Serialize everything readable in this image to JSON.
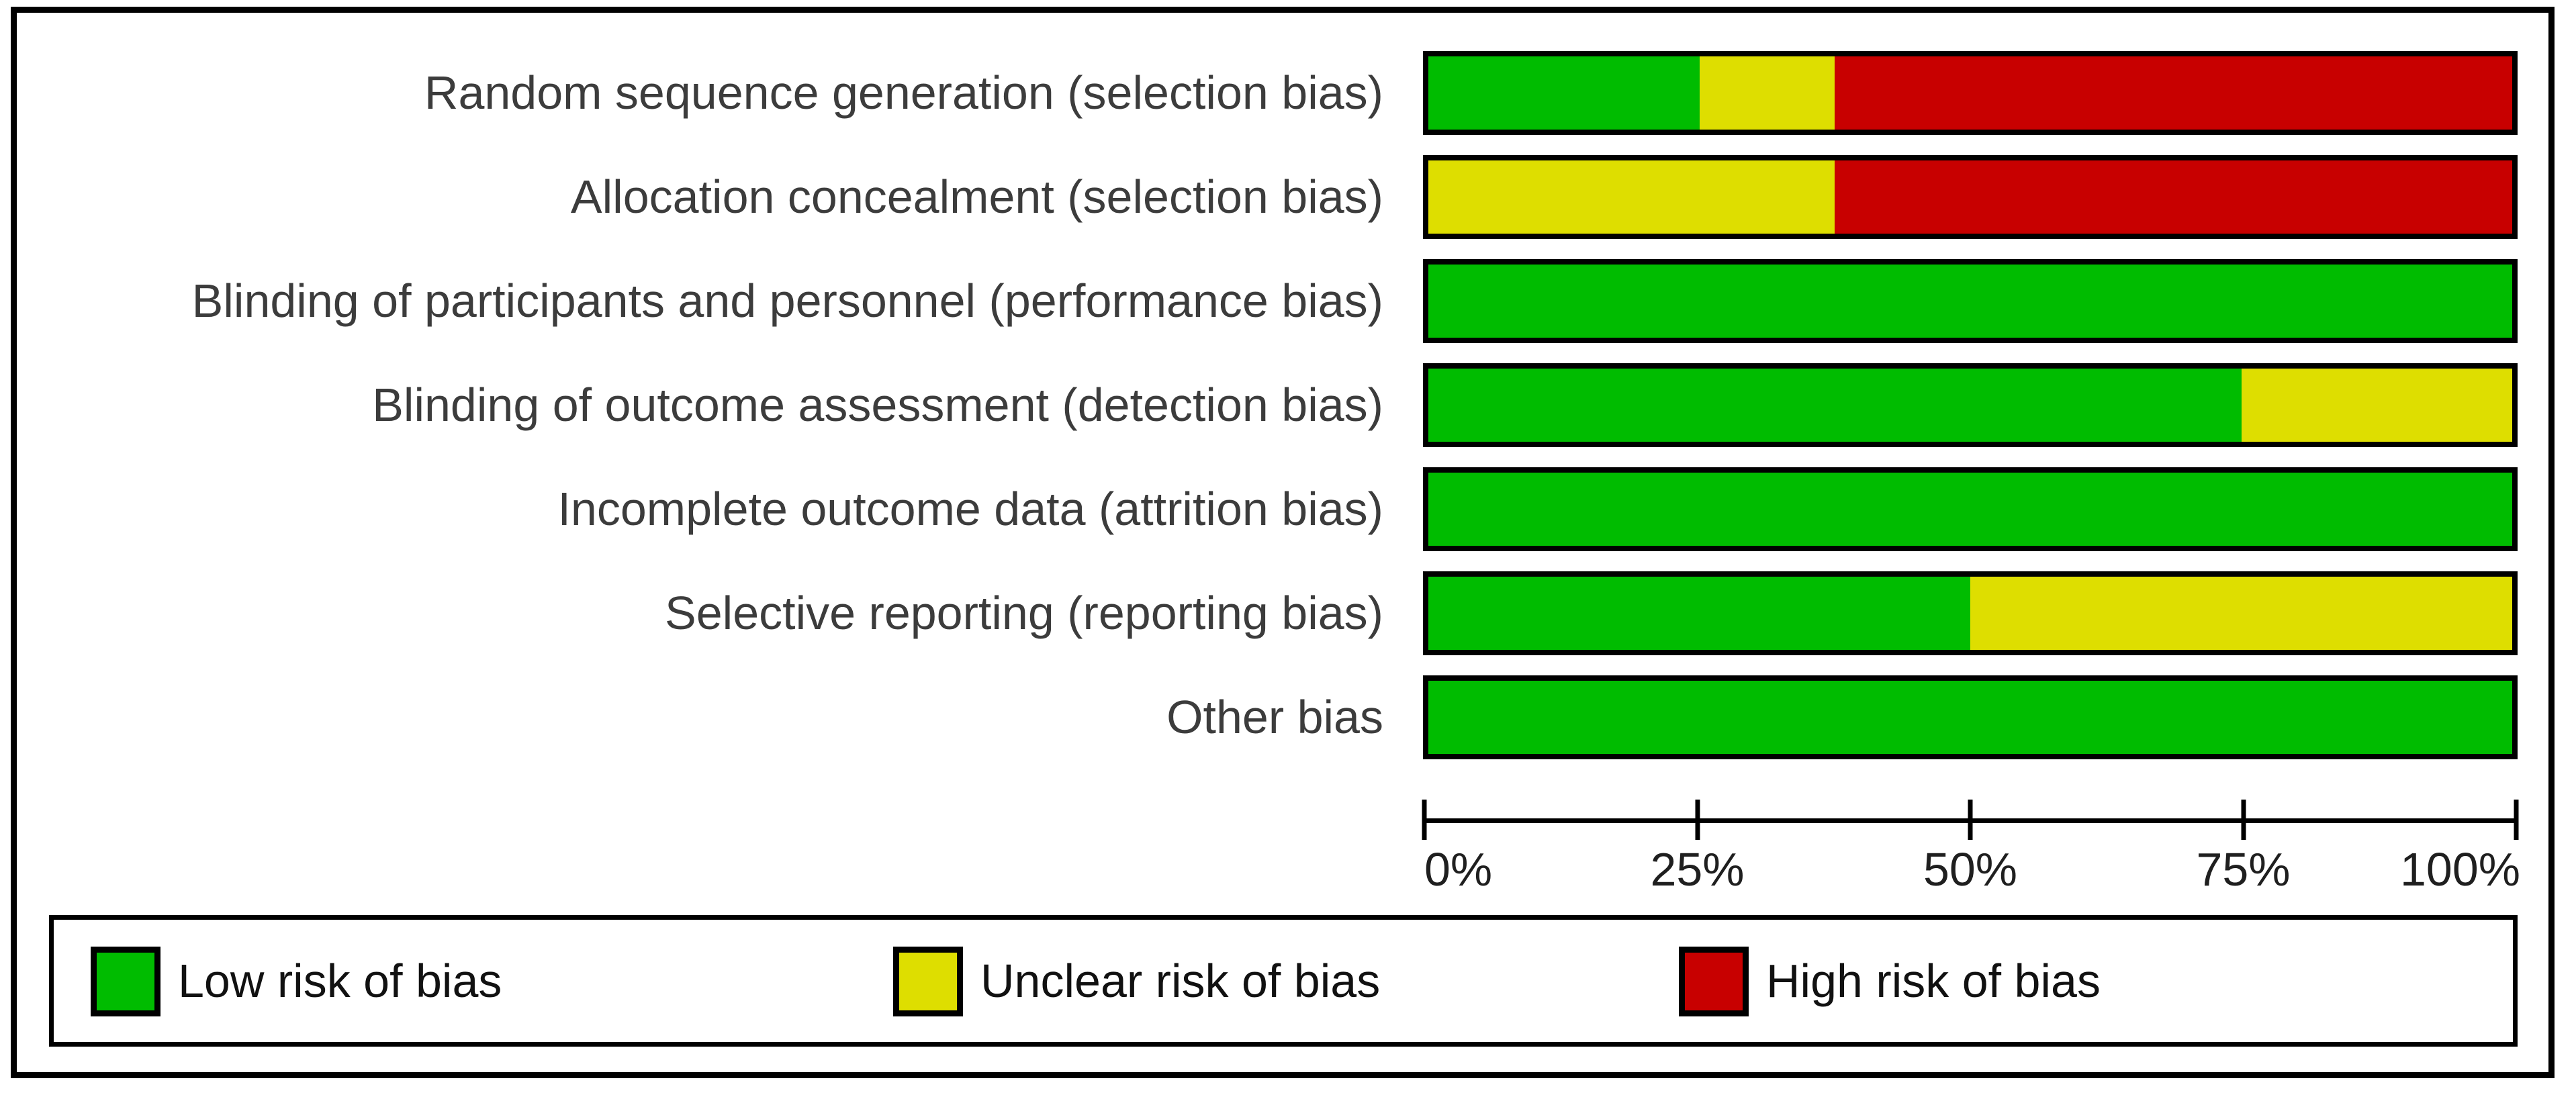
{
  "figure": {
    "background_color": "#ffffff",
    "border_color": "#000000",
    "text_color": "#3c3c3c"
  },
  "chart_data": {
    "type": "bar",
    "stacked": true,
    "orientation": "horizontal",
    "title": "",
    "xlabel": "",
    "ylabel": "",
    "grid": false,
    "xlim": [
      0,
      100
    ],
    "x_ticks": [
      "0%",
      "25%",
      "50%",
      "75%",
      "100%"
    ],
    "x_tick_values": [
      0,
      25,
      50,
      75,
      100
    ],
    "legend_position": "bottom-box",
    "categories": [
      "Random sequence generation (selection bias)",
      "Allocation concealment (selection bias)",
      "Blinding of participants and personnel (performance bias)",
      "Blinding of outcome assessment (detection bias)",
      "Incomplete outcome data (attrition bias)",
      "Selective reporting (reporting bias)",
      "Other bias"
    ],
    "series": [
      {
        "name": "Low risk of bias",
        "color": "#00bc00",
        "values": [
          25,
          0,
          100,
          75,
          100,
          50,
          100
        ]
      },
      {
        "name": "Unclear risk of bias",
        "color": "#dede00",
        "values": [
          12.5,
          37.5,
          0,
          25,
          0,
          50,
          0
        ]
      },
      {
        "name": "High risk of bias",
        "color": "#c80000",
        "values": [
          62.5,
          62.5,
          0,
          0,
          0,
          0,
          0
        ]
      }
    ]
  },
  "layout_values": {
    "row_top_start": 57,
    "row_pitch": 155,
    "legend_item_lefts": [
      55,
      1250,
      2420
    ]
  }
}
